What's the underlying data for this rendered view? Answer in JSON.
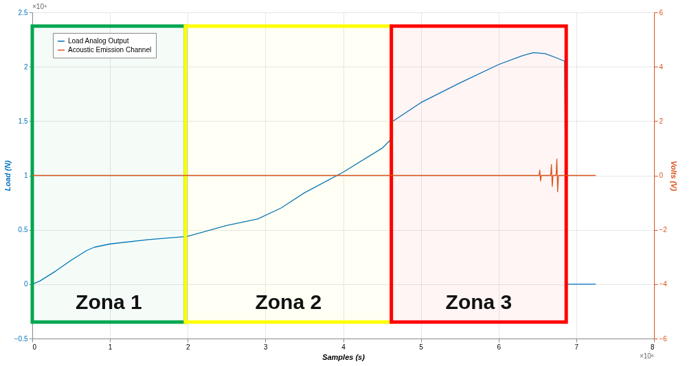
{
  "chart_data": {
    "type": "line",
    "xlabel": "Samples (s)",
    "ylabel": "Load (N)",
    "y2label": "Volts (V)",
    "xlim": [
      0,
      8
    ],
    "xticks": [
      0,
      1,
      2,
      3,
      4,
      5,
      6,
      7,
      8
    ],
    "ylim": [
      -0.5,
      2.5
    ],
    "yticks": [
      -0.5,
      0,
      0.5,
      1,
      1.5,
      2,
      2.5
    ],
    "y2lim": [
      -6,
      6
    ],
    "y2ticks": [
      -6,
      -4,
      -2,
      0,
      2,
      4,
      6
    ],
    "grid": true,
    "legend": "top left",
    "marker": "none",
    "line_style": "solid",
    "series": [
      {
        "name": "Load Analog Output",
        "color": "#0072bd",
        "x": [
          0,
          0.1,
          0.3,
          0.5,
          0.7,
          0.8,
          1.0,
          1.5,
          2.0,
          2.5,
          2.9,
          3.2,
          3.5,
          4.0,
          4.5,
          4.6,
          4.62,
          5.0,
          5.5,
          6.0,
          6.3,
          6.45,
          6.6,
          6.75,
          6.85,
          6.87,
          7.25
        ],
        "values": [
          0,
          0.03,
          0.12,
          0.22,
          0.31,
          0.34,
          0.37,
          0.41,
          0.44,
          0.54,
          0.6,
          0.7,
          0.84,
          1.03,
          1.25,
          1.32,
          1.49,
          1.67,
          1.85,
          2.02,
          2.1,
          2.13,
          2.12,
          2.08,
          2.05,
          0,
          0
        ]
      },
      {
        "name": "Acoustic Emission Channel",
        "color": "#d95319",
        "axis": "y2",
        "x": [
          0,
          6.52,
          6.53,
          6.54,
          6.55,
          6.67,
          6.68,
          6.69,
          6.7,
          6.74,
          6.75,
          6.76,
          6.77,
          7.25
        ],
        "values": [
          0,
          0,
          0.2,
          -0.2,
          0,
          0,
          0.4,
          -0.4,
          0,
          0,
          0.6,
          -0.6,
          0,
          0
        ]
      }
    ],
    "bands": [
      {
        "axis": "x",
        "from": 0,
        "to": 1.97,
        "label": "Zona 1",
        "color": "#00a650"
      },
      {
        "axis": "x",
        "from": 1.97,
        "to": 4.62,
        "label": "Zona 2",
        "color": "#ffff00"
      },
      {
        "axis": "x",
        "from": 4.62,
        "to": 6.87,
        "label": "Zona 3",
        "color": "#ff0000"
      }
    ],
    "annotations": [
      "×10⁴",
      "×10⁶"
    ]
  }
}
